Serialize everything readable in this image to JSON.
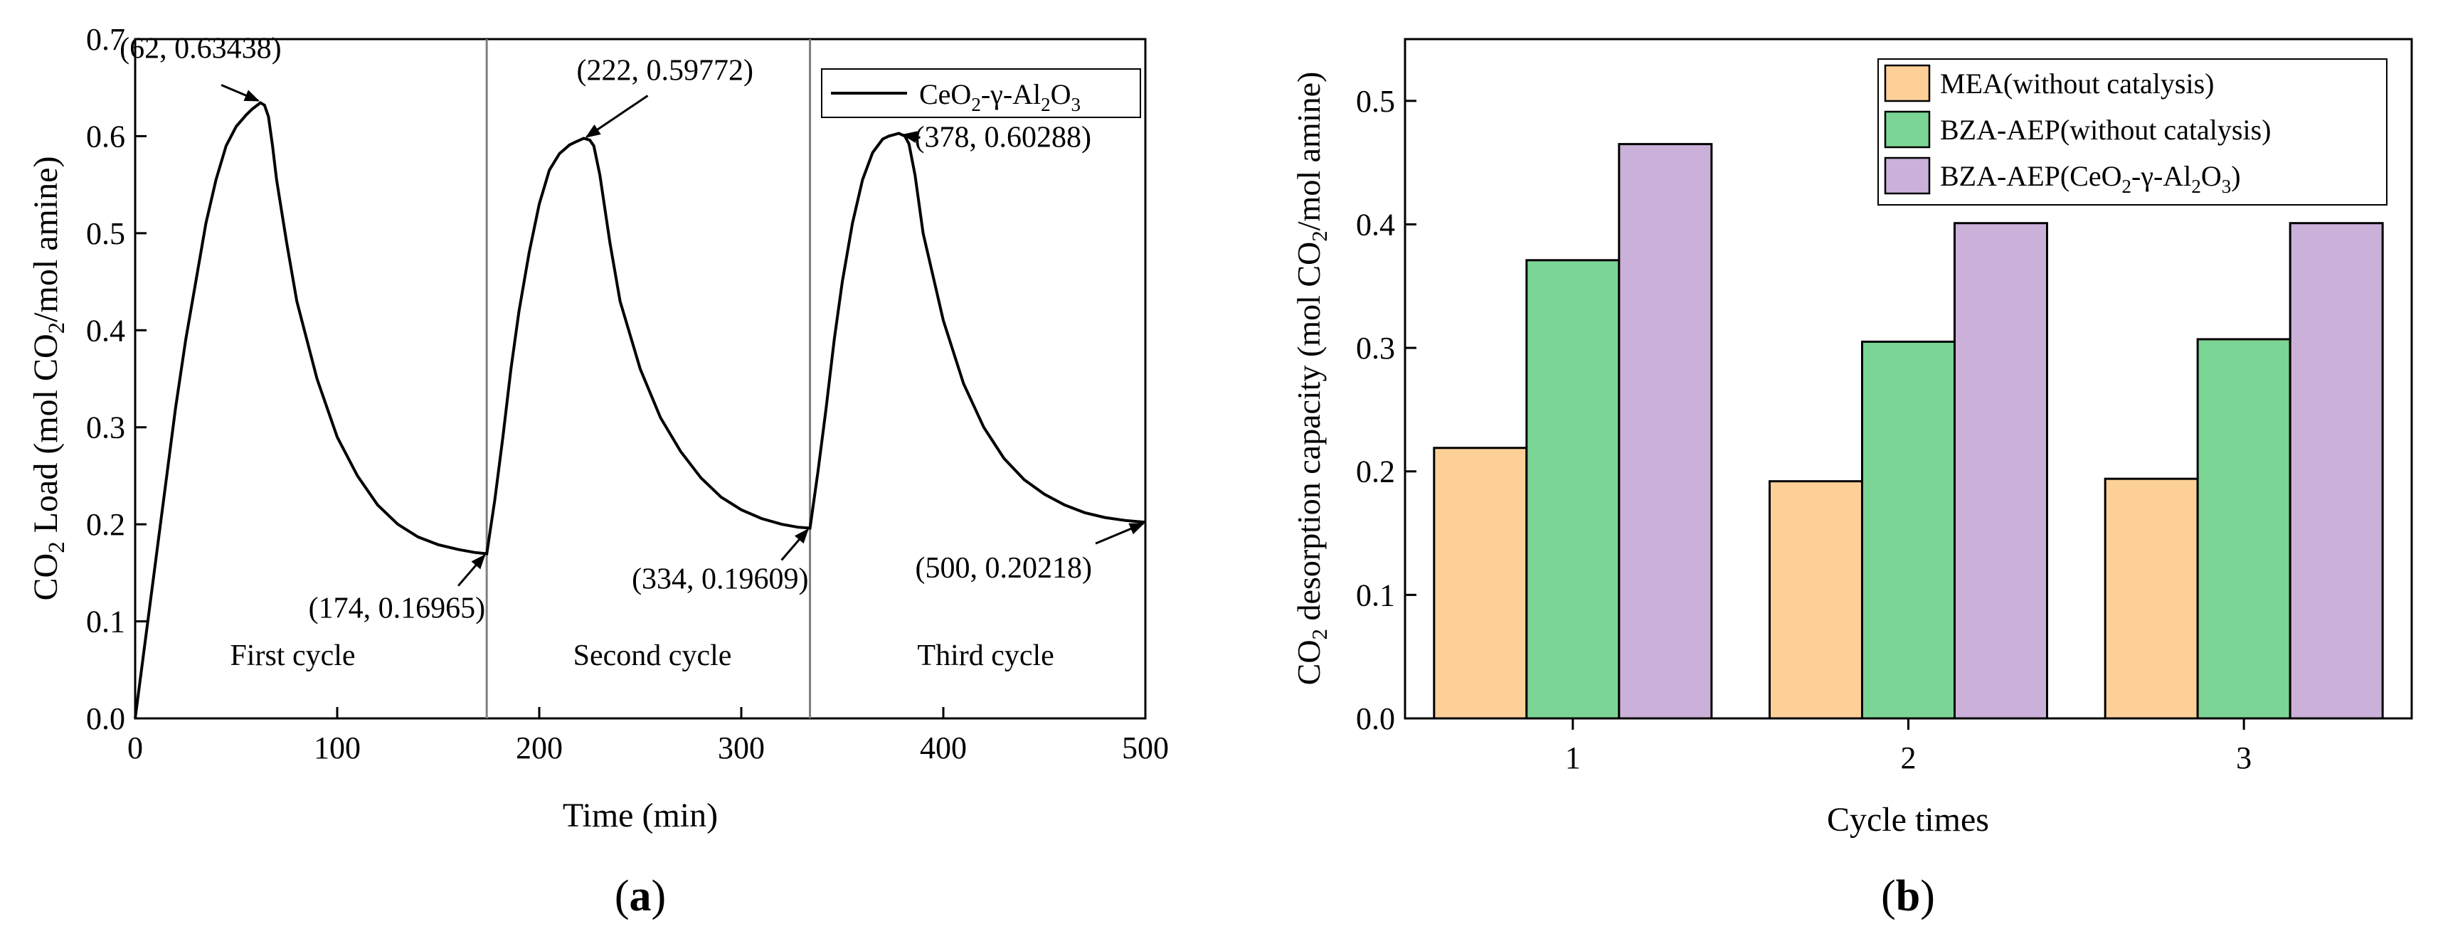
{
  "chart_data": [
    {
      "type": "line",
      "panel_label": "a",
      "xlabel": "Time (min)",
      "ylabel": "CO2 Load (mol CO2/mol amine)",
      "xlim": [
        0,
        500
      ],
      "ylim": [
        0,
        0.7
      ],
      "xticks": [
        0,
        100,
        200,
        300,
        400,
        500
      ],
      "yticks": [
        0.0,
        0.1,
        0.2,
        0.3,
        0.4,
        0.5,
        0.6,
        0.7
      ],
      "xtick_labels": [
        "0",
        "100",
        "200",
        "300",
        "400",
        "500"
      ],
      "ytick_labels": [
        "0.0",
        "0.1",
        "0.2",
        "0.3",
        "0.4",
        "0.5",
        "0.6",
        "0.7"
      ],
      "series": [
        {
          "name": "CeO2-γ-Al2O3",
          "x": [
            0,
            5,
            10,
            15,
            20,
            25,
            30,
            35,
            40,
            45,
            50,
            55,
            58,
            62,
            64,
            66,
            68,
            70,
            75,
            80,
            90,
            100,
            110,
            120,
            130,
            140,
            150,
            160,
            168,
            174,
            178,
            182,
            186,
            190,
            195,
            200,
            205,
            210,
            215,
            218,
            222,
            225,
            227,
            230,
            235,
            240,
            250,
            260,
            270,
            280,
            290,
            300,
            310,
            320,
            328,
            334,
            338,
            342,
            346,
            350,
            355,
            360,
            365,
            370,
            373,
            378,
            381,
            383,
            386,
            390,
            400,
            410,
            420,
            430,
            440,
            450,
            460,
            470,
            480,
            490,
            500
          ],
          "y": [
            0.0,
            0.08,
            0.16,
            0.24,
            0.32,
            0.39,
            0.45,
            0.51,
            0.555,
            0.59,
            0.61,
            0.622,
            0.628,
            0.63438,
            0.632,
            0.62,
            0.59,
            0.555,
            0.49,
            0.43,
            0.35,
            0.29,
            0.25,
            0.22,
            0.2,
            0.187,
            0.179,
            0.174,
            0.171,
            0.16965,
            0.225,
            0.29,
            0.36,
            0.42,
            0.48,
            0.53,
            0.565,
            0.582,
            0.591,
            0.594,
            0.59772,
            0.596,
            0.59,
            0.56,
            0.49,
            0.43,
            0.36,
            0.31,
            0.275,
            0.248,
            0.228,
            0.215,
            0.206,
            0.2,
            0.197,
            0.19609,
            0.255,
            0.32,
            0.39,
            0.45,
            0.51,
            0.555,
            0.583,
            0.597,
            0.6,
            0.60288,
            0.6,
            0.592,
            0.56,
            0.5,
            0.41,
            0.345,
            0.3,
            0.268,
            0.246,
            0.231,
            0.22,
            0.212,
            0.207,
            0.204,
            0.20218
          ]
        }
      ],
      "cycle_dividers": [
        174,
        334
      ],
      "cycle_labels": [
        {
          "text": "First cycle",
          "x": 78
        },
        {
          "text": "Second cycle",
          "x": 256
        },
        {
          "text": "Third cycle",
          "x": 421
        }
      ],
      "annotations": [
        {
          "text": "(62, 0.63438)",
          "x": 62,
          "y": 0.63438
        },
        {
          "text": "(222, 0.59772)",
          "x": 222,
          "y": 0.59772
        },
        {
          "text": "(378, 0.60288)",
          "x": 378,
          "y": 0.60288
        },
        {
          "text": "(174, 0.16965)",
          "x": 174,
          "y": 0.16965
        },
        {
          "text": "(334, 0.19609)",
          "x": 334,
          "y": 0.19609
        },
        {
          "text": "(500, 0.20218)",
          "x": 500,
          "y": 0.20218
        }
      ],
      "legend": {
        "placement": "top-right",
        "entries": [
          "CeO2-γ-Al2O3"
        ]
      }
    },
    {
      "type": "bar",
      "panel_label": "b",
      "xlabel": "Cycle times",
      "ylabel": "CO2 desorption capacity (mol CO2/mol amine)",
      "categories": [
        "1",
        "2",
        "3"
      ],
      "ylim": [
        0,
        0.55
      ],
      "yticks": [
        0.0,
        0.1,
        0.2,
        0.3,
        0.4,
        0.5
      ],
      "ytick_labels": [
        "0.0",
        "0.1",
        "0.2",
        "0.3",
        "0.4",
        "0.5"
      ],
      "series": [
        {
          "name": "MEA(without catalysis)",
          "color": "#fdd097",
          "values": [
            0.219,
            0.192,
            0.194
          ]
        },
        {
          "name": "BZA-AEP(without catalysis)",
          "color": "#7bd595",
          "values": [
            0.371,
            0.305,
            0.307
          ]
        },
        {
          "name": "BZA-AEP(CeO2-γ-Al2O3)",
          "color": "#cbb1d9",
          "values": [
            0.465,
            0.401,
            0.401
          ]
        }
      ],
      "legend": {
        "placement": "top-right"
      }
    }
  ]
}
